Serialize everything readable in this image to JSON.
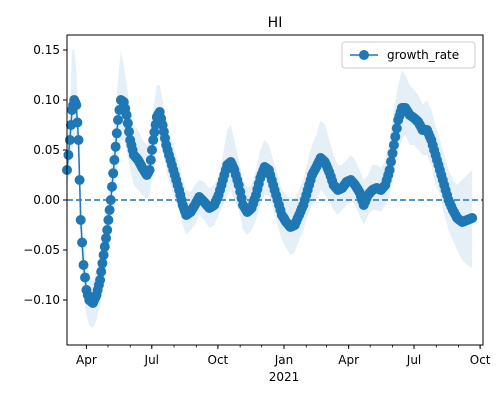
{
  "chart_data": {
    "type": "line",
    "title": "HI",
    "xlabel": "",
    "ylabel": "",
    "x_start": "2020-03-05",
    "x_end": "2021-10-05",
    "xlim": [
      "2020-03-05",
      "2021-10-05"
    ],
    "ylim": [
      -0.145,
      0.165
    ],
    "x_ticks": [
      {
        "date": "2020-04-01",
        "label": "Apr"
      },
      {
        "date": "2020-07-01",
        "label": "Jul"
      },
      {
        "date": "2020-10-01",
        "label": "Oct"
      },
      {
        "date": "2021-01-01",
        "label": "Jan"
      },
      {
        "date": "2021-04-01",
        "label": "Apr"
      },
      {
        "date": "2021-07-01",
        "label": "Jul"
      },
      {
        "date": "2021-10-01",
        "label": "Oct"
      }
    ],
    "x_year_label": "2021",
    "y_ticks": [
      -0.1,
      -0.05,
      0.0,
      0.05,
      0.1,
      0.15
    ],
    "y_tick_labels": [
      "−0.10",
      "−0.05",
      "0.00",
      "0.05",
      "0.10",
      "0.15"
    ],
    "legend": {
      "position": "top-right",
      "entries": [
        "growth_rate"
      ]
    },
    "reference_line": {
      "y": 0.0,
      "style": "dashed"
    },
    "grid": false,
    "series": [
      {
        "name": "growth_rate",
        "color": "#1f77b4",
        "band_color": "#c6dcef",
        "points": [
          {
            "x": "2020-03-05",
            "y": 0.03,
            "lo": 0.01,
            "hi": 0.05
          },
          {
            "x": "2020-03-09",
            "y": 0.06,
            "lo": 0.03,
            "hi": 0.09
          },
          {
            "x": "2020-03-12",
            "y": 0.09,
            "lo": 0.045,
            "hi": 0.15
          },
          {
            "x": "2020-03-15",
            "y": 0.1,
            "lo": 0.06,
            "hi": 0.15
          },
          {
            "x": "2020-03-18",
            "y": 0.095,
            "lo": 0.06,
            "hi": 0.13
          },
          {
            "x": "2020-03-21",
            "y": 0.06,
            "lo": 0.03,
            "hi": 0.085
          },
          {
            "x": "2020-03-24",
            "y": -0.02,
            "lo": -0.05,
            "hi": 0.01
          },
          {
            "x": "2020-03-28",
            "y": -0.065,
            "lo": -0.095,
            "hi": -0.035
          },
          {
            "x": "2020-04-01",
            "y": -0.09,
            "lo": -0.115,
            "hi": -0.065
          },
          {
            "x": "2020-04-05",
            "y": -0.1,
            "lo": -0.125,
            "hi": -0.075
          },
          {
            "x": "2020-04-10",
            "y": -0.103,
            "lo": -0.128,
            "hi": -0.08
          },
          {
            "x": "2020-04-15",
            "y": -0.095,
            "lo": -0.12,
            "hi": -0.07
          },
          {
            "x": "2020-04-20",
            "y": -0.08,
            "lo": -0.105,
            "hi": -0.055
          },
          {
            "x": "2020-04-25",
            "y": -0.055,
            "lo": -0.08,
            "hi": -0.03
          },
          {
            "x": "2020-04-30",
            "y": -0.03,
            "lo": -0.06,
            "hi": -0.005
          },
          {
            "x": "2020-05-05",
            "y": 0.0,
            "lo": -0.03,
            "hi": 0.03
          },
          {
            "x": "2020-05-10",
            "y": 0.04,
            "lo": 0.01,
            "hi": 0.075
          },
          {
            "x": "2020-05-15",
            "y": 0.08,
            "lo": 0.04,
            "hi": 0.12
          },
          {
            "x": "2020-05-19",
            "y": 0.1,
            "lo": 0.06,
            "hi": 0.15
          },
          {
            "x": "2020-05-23",
            "y": 0.098,
            "lo": 0.06,
            "hi": 0.135
          },
          {
            "x": "2020-05-27",
            "y": 0.085,
            "lo": 0.05,
            "hi": 0.115
          },
          {
            "x": "2020-06-01",
            "y": 0.06,
            "lo": 0.03,
            "hi": 0.09
          },
          {
            "x": "2020-06-06",
            "y": 0.045,
            "lo": 0.015,
            "hi": 0.075
          },
          {
            "x": "2020-06-12",
            "y": 0.04,
            "lo": 0.01,
            "hi": 0.07
          },
          {
            "x": "2020-06-18",
            "y": 0.032,
            "lo": 0.005,
            "hi": 0.06
          },
          {
            "x": "2020-06-24",
            "y": 0.025,
            "lo": 0.0,
            "hi": 0.055
          },
          {
            "x": "2020-06-28",
            "y": 0.03,
            "lo": 0.005,
            "hi": 0.06
          },
          {
            "x": "2020-07-03",
            "y": 0.06,
            "lo": 0.03,
            "hi": 0.09
          },
          {
            "x": "2020-07-08",
            "y": 0.083,
            "lo": 0.055,
            "hi": 0.115
          },
          {
            "x": "2020-07-12",
            "y": 0.088,
            "lo": 0.06,
            "hi": 0.115
          },
          {
            "x": "2020-07-16",
            "y": 0.075,
            "lo": 0.05,
            "hi": 0.1
          },
          {
            "x": "2020-07-21",
            "y": 0.055,
            "lo": 0.03,
            "hi": 0.08
          },
          {
            "x": "2020-07-27",
            "y": 0.04,
            "lo": 0.015,
            "hi": 0.065
          },
          {
            "x": "2020-08-02",
            "y": 0.025,
            "lo": 0.0,
            "hi": 0.05
          },
          {
            "x": "2020-08-08",
            "y": 0.01,
            "lo": -0.01,
            "hi": 0.035
          },
          {
            "x": "2020-08-13",
            "y": -0.005,
            "lo": -0.025,
            "hi": 0.02
          },
          {
            "x": "2020-08-18",
            "y": -0.015,
            "lo": -0.035,
            "hi": 0.01
          },
          {
            "x": "2020-08-24",
            "y": -0.012,
            "lo": -0.03,
            "hi": 0.008
          },
          {
            "x": "2020-08-30",
            "y": -0.005,
            "lo": -0.025,
            "hi": 0.015
          },
          {
            "x": "2020-09-05",
            "y": 0.003,
            "lo": -0.015,
            "hi": 0.02
          },
          {
            "x": "2020-09-12",
            "y": -0.002,
            "lo": -0.02,
            "hi": 0.018
          },
          {
            "x": "2020-09-19",
            "y": -0.008,
            "lo": -0.028,
            "hi": 0.012
          },
          {
            "x": "2020-09-26",
            "y": -0.005,
            "lo": -0.025,
            "hi": 0.015
          },
          {
            "x": "2020-10-02",
            "y": 0.005,
            "lo": -0.015,
            "hi": 0.025
          },
          {
            "x": "2020-10-08",
            "y": 0.02,
            "lo": -0.005,
            "hi": 0.045
          },
          {
            "x": "2020-10-14",
            "y": 0.035,
            "lo": 0.005,
            "hi": 0.07
          },
          {
            "x": "2020-10-19",
            "y": 0.038,
            "lo": 0.01,
            "hi": 0.075
          },
          {
            "x": "2020-10-24",
            "y": 0.03,
            "lo": 0.0,
            "hi": 0.06
          },
          {
            "x": "2020-10-30",
            "y": 0.015,
            "lo": -0.01,
            "hi": 0.04
          },
          {
            "x": "2020-11-05",
            "y": -0.005,
            "lo": -0.03,
            "hi": 0.02
          },
          {
            "x": "2020-11-11",
            "y": -0.012,
            "lo": -0.035,
            "hi": 0.012
          },
          {
            "x": "2020-11-17",
            "y": -0.008,
            "lo": -0.03,
            "hi": 0.015
          },
          {
            "x": "2020-11-23",
            "y": 0.005,
            "lo": -0.02,
            "hi": 0.03
          },
          {
            "x": "2020-11-29",
            "y": 0.022,
            "lo": -0.005,
            "hi": 0.05
          },
          {
            "x": "2020-12-05",
            "y": 0.033,
            "lo": 0.005,
            "hi": 0.06
          },
          {
            "x": "2020-12-11",
            "y": 0.03,
            "lo": 0.005,
            "hi": 0.055
          },
          {
            "x": "2020-12-17",
            "y": 0.015,
            "lo": -0.01,
            "hi": 0.04
          },
          {
            "x": "2020-12-23",
            "y": 0.0,
            "lo": -0.025,
            "hi": 0.025
          },
          {
            "x": "2020-12-29",
            "y": -0.015,
            "lo": -0.04,
            "hi": 0.01
          },
          {
            "x": "2021-01-04",
            "y": -0.022,
            "lo": -0.048,
            "hi": 0.005
          },
          {
            "x": "2021-01-10",
            "y": -0.027,
            "lo": -0.055,
            "hi": 0.0
          },
          {
            "x": "2021-01-16",
            "y": -0.025,
            "lo": -0.052,
            "hi": 0.002
          },
          {
            "x": "2021-01-22",
            "y": -0.015,
            "lo": -0.04,
            "hi": 0.01
          },
          {
            "x": "2021-01-28",
            "y": -0.005,
            "lo": -0.03,
            "hi": 0.02
          },
          {
            "x": "2021-02-03",
            "y": 0.01,
            "lo": -0.015,
            "hi": 0.04
          },
          {
            "x": "2021-02-09",
            "y": 0.025,
            "lo": -0.005,
            "hi": 0.055
          },
          {
            "x": "2021-02-15",
            "y": 0.033,
            "lo": 0.0,
            "hi": 0.065
          },
          {
            "x": "2021-02-21",
            "y": 0.042,
            "lo": 0.01,
            "hi": 0.08
          },
          {
            "x": "2021-02-27",
            "y": 0.038,
            "lo": 0.005,
            "hi": 0.075
          },
          {
            "x": "2021-03-05",
            "y": 0.028,
            "lo": 0.0,
            "hi": 0.06
          },
          {
            "x": "2021-03-11",
            "y": 0.015,
            "lo": -0.01,
            "hi": 0.045
          },
          {
            "x": "2021-03-17",
            "y": 0.01,
            "lo": -0.015,
            "hi": 0.035
          },
          {
            "x": "2021-03-23",
            "y": 0.012,
            "lo": -0.01,
            "hi": 0.035
          },
          {
            "x": "2021-03-29",
            "y": 0.018,
            "lo": -0.005,
            "hi": 0.04
          },
          {
            "x": "2021-04-04",
            "y": 0.02,
            "lo": 0.0,
            "hi": 0.045
          },
          {
            "x": "2021-04-10",
            "y": 0.015,
            "lo": -0.005,
            "hi": 0.04
          },
          {
            "x": "2021-04-16",
            "y": 0.008,
            "lo": -0.015,
            "hi": 0.03
          },
          {
            "x": "2021-04-22",
            "y": -0.005,
            "lo": -0.025,
            "hi": 0.02
          },
          {
            "x": "2021-04-28",
            "y": 0.005,
            "lo": -0.015,
            "hi": 0.025
          },
          {
            "x": "2021-05-04",
            "y": 0.01,
            "lo": -0.01,
            "hi": 0.035
          },
          {
            "x": "2021-05-10",
            "y": 0.012,
            "lo": -0.01,
            "hi": 0.035
          },
          {
            "x": "2021-05-16",
            "y": 0.01,
            "lo": -0.012,
            "hi": 0.032
          },
          {
            "x": "2021-05-22",
            "y": 0.015,
            "lo": -0.005,
            "hi": 0.04
          },
          {
            "x": "2021-05-28",
            "y": 0.03,
            "lo": 0.005,
            "hi": 0.06
          },
          {
            "x": "2021-06-03",
            "y": 0.055,
            "lo": 0.025,
            "hi": 0.09
          },
          {
            "x": "2021-06-09",
            "y": 0.08,
            "lo": 0.05,
            "hi": 0.115
          },
          {
            "x": "2021-06-14",
            "y": 0.092,
            "lo": 0.06,
            "hi": 0.13
          },
          {
            "x": "2021-06-19",
            "y": 0.092,
            "lo": 0.065,
            "hi": 0.125
          },
          {
            "x": "2021-06-25",
            "y": 0.085,
            "lo": 0.055,
            "hi": 0.115
          },
          {
            "x": "2021-07-01",
            "y": 0.082,
            "lo": 0.055,
            "hi": 0.11
          },
          {
            "x": "2021-07-07",
            "y": 0.078,
            "lo": 0.05,
            "hi": 0.105
          },
          {
            "x": "2021-07-13",
            "y": 0.07,
            "lo": 0.045,
            "hi": 0.095
          },
          {
            "x": "2021-07-19",
            "y": 0.07,
            "lo": 0.045,
            "hi": 0.1
          },
          {
            "x": "2021-07-25",
            "y": 0.06,
            "lo": 0.035,
            "hi": 0.09
          },
          {
            "x": "2021-07-31",
            "y": 0.045,
            "lo": 0.015,
            "hi": 0.075
          },
          {
            "x": "2021-08-06",
            "y": 0.03,
            "lo": 0.005,
            "hi": 0.06
          },
          {
            "x": "2021-08-12",
            "y": 0.015,
            "lo": -0.015,
            "hi": 0.045
          },
          {
            "x": "2021-08-18",
            "y": 0.0,
            "lo": -0.03,
            "hi": 0.03
          },
          {
            "x": "2021-08-24",
            "y": -0.01,
            "lo": -0.04,
            "hi": 0.02
          },
          {
            "x": "2021-08-30",
            "y": -0.018,
            "lo": -0.05,
            "hi": 0.015
          },
          {
            "x": "2021-09-06",
            "y": -0.022,
            "lo": -0.06,
            "hi": 0.02
          },
          {
            "x": "2021-09-13",
            "y": -0.02,
            "lo": -0.065,
            "hi": 0.025
          },
          {
            "x": "2021-09-20",
            "y": -0.018,
            "lo": -0.068,
            "hi": 0.03
          }
        ]
      }
    ]
  }
}
